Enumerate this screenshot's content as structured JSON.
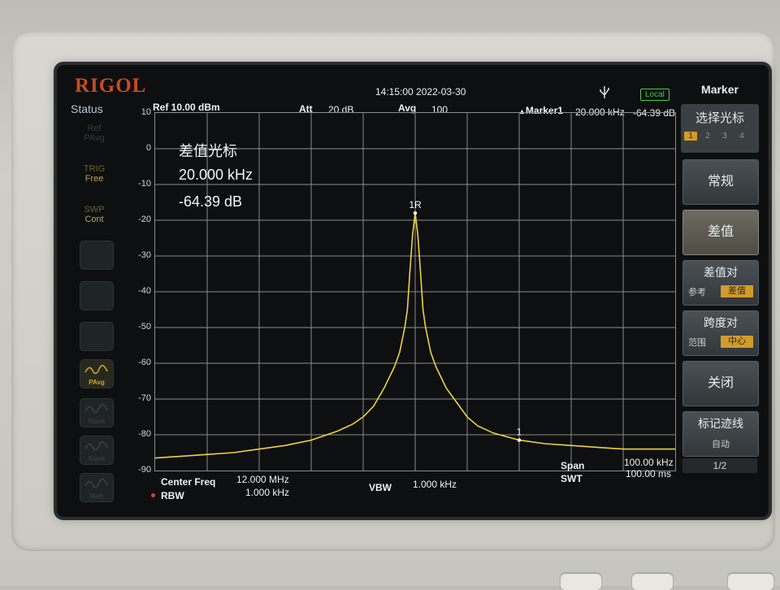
{
  "brand": "RIGOL",
  "status_label": "Status",
  "left_panel": [
    {
      "a": "Ref",
      "b": "PAvg"
    },
    {
      "a": "TRIG",
      "b": "Free"
    },
    {
      "a": "SWP",
      "b": "Cont"
    }
  ],
  "left_buttons": [
    {
      "name": "PAvg",
      "active": true
    },
    {
      "name": "Blank",
      "active": false
    },
    {
      "name": "Blank",
      "active": false
    },
    {
      "name": "Math",
      "active": false
    }
  ],
  "header": {
    "datetime": "14:15:00 2022-03-30",
    "ref": "Ref 10.00 dBm",
    "att_label": "Att",
    "att_value": "20 dB",
    "avg_label": "Avg",
    "avg_value": "100",
    "marker_label": "Marker1",
    "marker_freq": "20.000 kHz",
    "marker_level": "-64.39 dB",
    "local": "Local"
  },
  "marker_readout": {
    "title": "差值光标",
    "freq": "20.000 kHz",
    "level": "-64.39 dB",
    "peak_label": "1R",
    "delta_label": "1"
  },
  "footer": {
    "center_label": "Center Freq",
    "center_value": "12.000 MHz",
    "rbw_label": "RBW",
    "rbw_value": "1.000 kHz",
    "vbw_label": "VBW",
    "vbw_value": "1.000 kHz",
    "span_label": "Span",
    "span_value": "100.00 kHz",
    "swt_label": "SWT",
    "swt_value": "100.00 ms"
  },
  "softkeys": {
    "title": "Marker",
    "select_label": "选择光标",
    "select_options": [
      "1",
      "2",
      "3",
      "4"
    ],
    "select_active": "1",
    "normal": "常规",
    "delta": "差值",
    "delta_pair": {
      "label": "差值对",
      "opt_a": "参考",
      "opt_b": "差值"
    },
    "span_pair": {
      "label": "跨度对",
      "opt_a": "范围",
      "opt_b": "中心"
    },
    "off": "关闭",
    "marker_trace": {
      "label": "标记迹线",
      "opt": "自动"
    },
    "page": "1/2"
  },
  "colors": {
    "trace": "#f0d23a",
    "grid": "#8c8c8c",
    "screen_bg": "#0d0f10",
    "brand": "#c84a25",
    "highlight": "#d39b2a",
    "local": "#47d14a"
  },
  "chart_data": {
    "type": "line",
    "y_ticks": [
      "10",
      "0",
      "-10",
      "-20",
      "-30",
      "-40",
      "-50",
      "-60",
      "-70",
      "-80",
      "-90"
    ],
    "ylim": [
      -90,
      10
    ],
    "y_unit": "dBm",
    "xlim_khz": [
      -50,
      50
    ],
    "x_ref_center": "12.000 MHz",
    "grid": true,
    "series": [
      {
        "x": [
          -50,
          -45,
          -40,
          -35,
          -30,
          -25,
          -20,
          -15,
          -12,
          -10,
          -8,
          -6,
          -4,
          -3,
          -2,
          -1.5,
          -1,
          -0.5,
          0,
          0.5,
          1,
          1.5,
          2,
          3,
          4,
          6,
          8,
          10,
          12,
          15,
          20,
          25,
          30,
          35,
          40,
          45,
          50
        ],
        "y": [
          -86.5,
          -86,
          -85.5,
          -85,
          -84,
          -83,
          -81.5,
          -79,
          -77,
          -75,
          -72,
          -67,
          -61,
          -57,
          -50,
          -45,
          -34,
          -24,
          -18,
          -24,
          -34,
          -45,
          -50,
          -57,
          -61,
          -67,
          -71,
          -75,
          -77.5,
          -79.5,
          -81.5,
          -82.5,
          -83,
          -83.5,
          -84,
          -84,
          -84
        ]
      }
    ],
    "markers": [
      {
        "label": "1R",
        "x": 0,
        "y": -18
      },
      {
        "label": "1",
        "x": 20,
        "y": -81.5
      }
    ]
  }
}
